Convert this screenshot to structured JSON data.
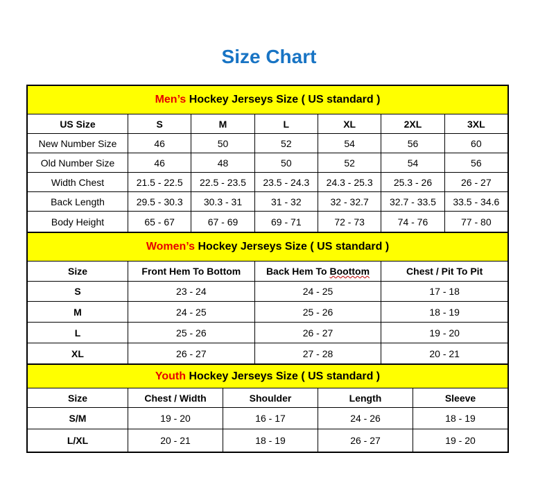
{
  "title": "Size Chart",
  "colors": {
    "title": "#1874c4",
    "band": "#ffff00",
    "accent": "#e60000"
  },
  "men": {
    "band_accent": "Men’s",
    "band_rest": " Hockey Jerseys Size ( US standard )",
    "headers": [
      "US Size",
      "S",
      "M",
      "L",
      "XL",
      "2XL",
      "3XL"
    ],
    "rows": [
      [
        "New Number Size",
        "46",
        "50",
        "52",
        "54",
        "56",
        "60"
      ],
      [
        "Old Number Size",
        "46",
        "48",
        "50",
        "52",
        "54",
        "56"
      ],
      [
        "Width Chest",
        "21.5 - 22.5",
        "22.5 - 23.5",
        "23.5 - 24.3",
        "24.3 - 25.3",
        "25.3 - 26",
        "26 - 27"
      ],
      [
        "Back Length",
        "29.5 - 30.3",
        "30.3 - 31",
        "31 - 32",
        "32 - 32.7",
        "32.7 - 33.5",
        "33.5 - 34.6"
      ],
      [
        "Body Height",
        "65 - 67",
        "67 - 69",
        "69 - 71",
        "72 - 73",
        "74 - 76",
        "77 - 80"
      ]
    ]
  },
  "women": {
    "band_accent": "Women’s",
    "band_rest": " Hockey Jerseys Size ( US standard )",
    "headers": [
      "Size",
      "Front Hem To Bottom",
      "Back Hem To Boottom",
      "Chest / Pit To Pit"
    ],
    "rows": [
      [
        "S",
        "23 - 24",
        "24 - 25",
        "17 - 18"
      ],
      [
        "M",
        "24 - 25",
        "25 - 26",
        "18 - 19"
      ],
      [
        "L",
        "25 - 26",
        "26 - 27",
        "19 - 20"
      ],
      [
        "XL",
        "26 - 27",
        "27 - 28",
        "20 - 21"
      ]
    ]
  },
  "youth": {
    "band_accent": "Youth",
    "band_rest": " Hockey Jerseys Size ( US standard )",
    "headers": [
      "Size",
      "Chest / Width",
      "Shoulder",
      "Length",
      "Sleeve"
    ],
    "rows": [
      [
        "S/M",
        "19 - 20",
        "16 - 17",
        "24 - 26",
        "18 - 19"
      ],
      [
        "L/XL",
        "20 - 21",
        "18 - 19",
        "26 - 27",
        "19 - 20"
      ]
    ]
  }
}
